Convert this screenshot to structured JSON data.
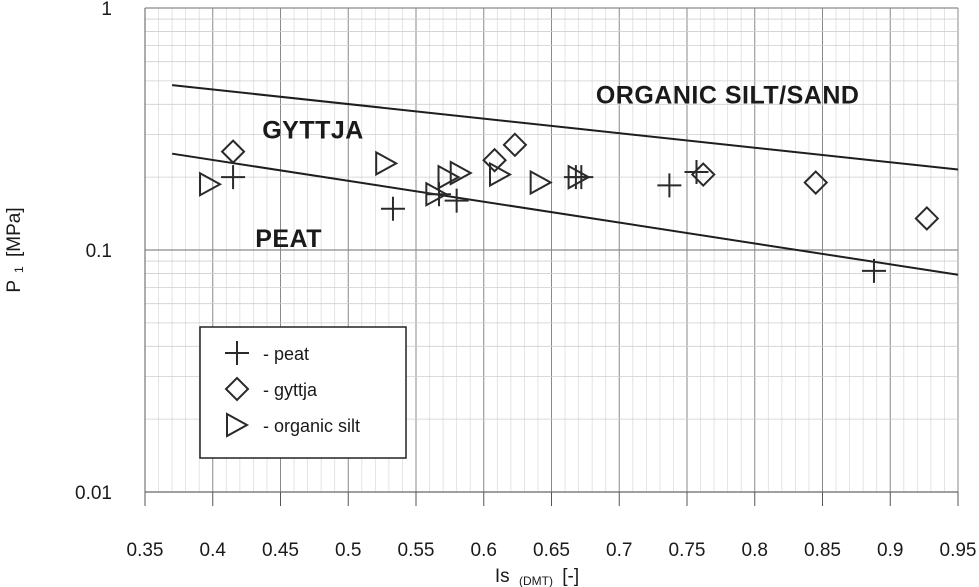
{
  "chart_data": {
    "type": "scatter",
    "x_scale": "linear",
    "y_scale": "log",
    "xlim": [
      0.35,
      0.95
    ],
    "ylim": [
      0.01,
      1
    ],
    "x_ticks": [
      0.35,
      0.4,
      0.45,
      0.5,
      0.55,
      0.6,
      0.65,
      0.7,
      0.75,
      0.8,
      0.85,
      0.9,
      0.95
    ],
    "x_tick_labels": [
      "0.35",
      "0.4",
      "0.45",
      "0.5",
      "0.55",
      "0.6",
      "0.65",
      "0.7",
      "0.75",
      "0.8",
      "0.85",
      "0.9",
      "0.95"
    ],
    "y_ticks": [
      0.01,
      0.1,
      1
    ],
    "y_tick_labels": [
      "0.01",
      "0.1",
      "1"
    ],
    "xlabel": "Is",
    "xlabel_sub": "(DMT)",
    "xlabel_unit": "[-]",
    "ylabel": "P",
    "ylabel_sub": "1",
    "ylabel_unit": "[MPa]",
    "grid": true,
    "legend_position": "lower-left",
    "series": [
      {
        "name": "- peat",
        "marker": "plus",
        "x": [
          0.415,
          0.533,
          0.567,
          0.58,
          0.668,
          0.672,
          0.737,
          0.757,
          0.888
        ],
        "y": [
          0.2,
          0.148,
          0.17,
          0.16,
          0.2,
          0.2,
          0.185,
          0.21,
          0.082
        ]
      },
      {
        "name": "- gyttja",
        "marker": "diamond",
        "x": [
          0.415,
          0.608,
          0.623,
          0.762,
          0.845,
          0.927
        ],
        "y": [
          0.255,
          0.235,
          0.272,
          0.205,
          0.19,
          0.135
        ]
      },
      {
        "name": "- organic silt",
        "marker": "triangle-right",
        "x": [
          0.398,
          0.528,
          0.565,
          0.574,
          0.583,
          0.612,
          0.642,
          0.67
        ],
        "y": [
          0.187,
          0.228,
          0.17,
          0.2,
          0.208,
          0.205,
          0.19,
          0.2
        ]
      }
    ],
    "boundary_lines": [
      {
        "x": [
          0.37,
          0.95
        ],
        "y": [
          0.48,
          0.215
        ]
      },
      {
        "x": [
          0.37,
          0.95
        ],
        "y": [
          0.25,
          0.079
        ]
      }
    ],
    "annotations": [
      {
        "text": "ORGANIC SILT/SAND",
        "x": 0.78,
        "y": 0.44
      },
      {
        "text": "GYTTJA",
        "x": 0.474,
        "y": 0.315
      },
      {
        "text": "PEAT",
        "x": 0.456,
        "y": 0.112
      }
    ]
  }
}
